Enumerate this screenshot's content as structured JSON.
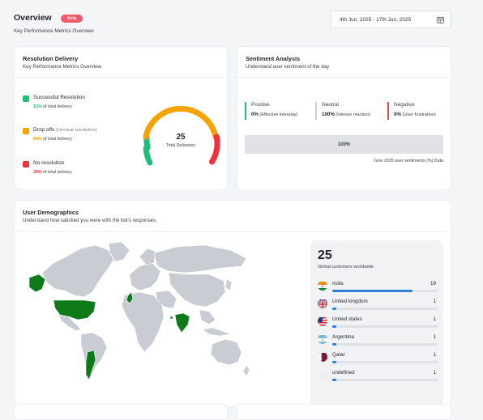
{
  "header": {
    "title": "Overview",
    "badge": "Beta",
    "subtitle": "Key Performance Metrics Overview",
    "date_range": "4th Jun, 2025 - 17th Jun, 2025"
  },
  "resolution": {
    "title": "Resolution Delivery",
    "subtitle": "Key Performance Metrics Overview",
    "items": [
      {
        "label": "Successful Resolution",
        "note": "",
        "pct": "12%",
        "pct_suffix": "of total delivery",
        "color": "#1fbf7a"
      },
      {
        "label": "Drop offs",
        "note": "(Unclear resolution)",
        "pct": "68%",
        "pct_suffix": "of total delivery",
        "color": "#f5a300"
      },
      {
        "label": "No resolution",
        "note": "",
        "pct": "20%",
        "pct_suffix": "of total delivery",
        "color": "#f0303b"
      }
    ],
    "gauge": {
      "total": "25",
      "label": "Total Deliveries"
    }
  },
  "sentiment": {
    "title": "Sentiment Analysis",
    "subtitle": "Understand user sentiment of the day",
    "columns": [
      {
        "name": "Positive",
        "value": "0%",
        "note": "(Effective interplay)",
        "color": "#1fbf7a"
      },
      {
        "name": "Neutral",
        "value": "100%",
        "note": "(Intense reaction)",
        "color": "#c9ccd1"
      },
      {
        "name": "Negative",
        "value": "0%",
        "note": "(User frustration)",
        "color": "#e0474f"
      }
    ],
    "bar_label": "100%",
    "footnote": "June 2025 user sentiments (%) Data"
  },
  "demographics": {
    "title": "User Demographics",
    "subtitle": "Understand how satisfied you were with the bot's responses.",
    "total": "25",
    "total_label": "Global customers worldwide",
    "countries": [
      {
        "name": "India",
        "count": "19",
        "share": 0.76,
        "flag": "india-flag-icon"
      },
      {
        "name": "United kingdom",
        "count": "1",
        "share": 0.04,
        "flag": "uk-flag-icon"
      },
      {
        "name": "United states",
        "count": "1",
        "share": 0.04,
        "flag": "us-flag-icon"
      },
      {
        "name": "Argentina",
        "count": "1",
        "share": 0.04,
        "flag": "argentina-flag-icon"
      },
      {
        "name": "Qatar",
        "count": "1",
        "share": 0.04,
        "flag": "qatar-flag-icon"
      },
      {
        "name": "undefined",
        "count": "1",
        "share": 0.04,
        "flag": "blank-flag-icon"
      }
    ],
    "map_highlight_color": "#0e7a1a"
  }
}
